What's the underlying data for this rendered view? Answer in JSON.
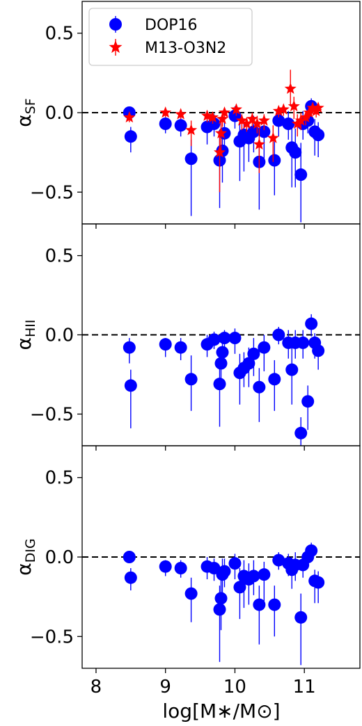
{
  "colors": {
    "dop16": "#0000ff",
    "m13": "#ff0000",
    "axis": "#000000"
  },
  "legend": [
    {
      "label": "DOP16",
      "marker": "circle"
    },
    {
      "label": "M13-O3N2",
      "marker": "star"
    }
  ],
  "xlabel": "log[M∗/M⊙]",
  "xlim": [
    7.8,
    11.8
  ],
  "xticks": [
    8,
    9,
    10,
    11
  ],
  "chart_data": [
    {
      "type": "scatter",
      "ylabel_main": "α",
      "ylabel_sub": "SF",
      "ylim": [
        -0.7,
        0.7
      ],
      "yticks": [
        0.5,
        0.0,
        -0.5
      ],
      "ytick_labels": [
        "0.5",
        "0.0",
        "−0.5"
      ],
      "reference_line_y": 0,
      "series": [
        {
          "name": "DOP16",
          "marker": "circle",
          "points": [
            [
              8.48,
              0.0,
              0.03,
              0.03
            ],
            [
              8.5,
              -0.15,
              0.1,
              0.06
            ],
            [
              9.0,
              -0.07,
              0.06,
              0.04
            ],
            [
              9.22,
              -0.08,
              0.07,
              0.05
            ],
            [
              9.37,
              -0.29,
              0.36,
              0.12
            ],
            [
              9.6,
              -0.09,
              0.11,
              0.07
            ],
            [
              9.7,
              -0.07,
              0.08,
              0.06
            ],
            [
              9.78,
              -0.3,
              0.3,
              0.15
            ],
            [
              9.82,
              -0.24,
              0.2,
              0.1
            ],
            [
              9.85,
              -0.13,
              0.12,
              0.08
            ],
            [
              10.0,
              -0.02,
              0.08,
              0.06
            ],
            [
              10.07,
              -0.18,
              0.25,
              0.12
            ],
            [
              10.13,
              -0.14,
              0.23,
              0.1
            ],
            [
              10.2,
              -0.16,
              0.15,
              0.1
            ],
            [
              10.27,
              -0.12,
              0.13,
              0.1
            ],
            [
              10.35,
              -0.31,
              0.3,
              0.12
            ],
            [
              10.42,
              -0.12,
              0.2,
              0.1
            ],
            [
              10.57,
              -0.3,
              0.22,
              0.12
            ],
            [
              10.63,
              -0.05,
              0.1,
              0.06
            ],
            [
              10.77,
              -0.07,
              0.1,
              0.08
            ],
            [
              10.82,
              -0.22,
              0.25,
              0.15
            ],
            [
              10.87,
              -0.25,
              0.22,
              0.15
            ],
            [
              10.95,
              -0.39,
              0.3,
              0.2
            ],
            [
              10.98,
              -0.07,
              0.1,
              0.08
            ],
            [
              11.05,
              -0.05,
              0.08,
              0.06
            ],
            [
              11.1,
              0.04,
              0.07,
              0.05
            ],
            [
              11.15,
              -0.12,
              0.15,
              0.08
            ],
            [
              11.2,
              -0.14,
              0.14,
              0.08
            ]
          ]
        },
        {
          "name": "M13-O3N2",
          "marker": "star",
          "points": [
            [
              8.48,
              -0.03,
              0.03,
              0.02
            ],
            [
              9.0,
              0.0,
              0.03,
              0.02
            ],
            [
              9.22,
              -0.01,
              0.03,
              0.02
            ],
            [
              9.37,
              -0.11,
              0.1,
              0.06
            ],
            [
              9.6,
              -0.02,
              0.04,
              0.03
            ],
            [
              9.68,
              -0.03,
              0.04,
              0.03
            ],
            [
              9.78,
              -0.25,
              0.25,
              0.1
            ],
            [
              9.8,
              -0.13,
              0.12,
              0.08
            ],
            [
              9.82,
              -0.04,
              0.05,
              0.03
            ],
            [
              9.85,
              0.0,
              0.04,
              0.03
            ],
            [
              10.02,
              0.02,
              0.04,
              0.03
            ],
            [
              10.1,
              -0.05,
              0.06,
              0.04
            ],
            [
              10.17,
              -0.07,
              0.05,
              0.04
            ],
            [
              10.25,
              -0.04,
              0.05,
              0.04
            ],
            [
              10.32,
              -0.07,
              0.06,
              0.05
            ],
            [
              10.35,
              -0.2,
              0.18,
              0.1
            ],
            [
              10.42,
              -0.05,
              0.06,
              0.04
            ],
            [
              10.55,
              -0.16,
              0.15,
              0.08
            ],
            [
              10.63,
              0.01,
              0.04,
              0.03
            ],
            [
              10.7,
              0.02,
              0.04,
              0.03
            ],
            [
              10.8,
              0.15,
              0.1,
              0.12
            ],
            [
              10.85,
              0.04,
              0.08,
              0.06
            ],
            [
              10.9,
              -0.07,
              0.08,
              0.06
            ],
            [
              10.95,
              -0.05,
              0.06,
              0.05
            ],
            [
              11.02,
              -0.03,
              0.05,
              0.04
            ],
            [
              11.07,
              0.0,
              0.04,
              0.03
            ],
            [
              11.12,
              0.03,
              0.04,
              0.03
            ],
            [
              11.17,
              0.01,
              0.04,
              0.03
            ],
            [
              11.2,
              0.03,
              0.04,
              0.03
            ]
          ]
        }
      ]
    },
    {
      "type": "scatter",
      "ylabel_main": "α",
      "ylabel_sub": "HII",
      "ylim": [
        -0.7,
        0.7
      ],
      "yticks": [
        0.5,
        0.0,
        -0.5
      ],
      "ytick_labels": [
        "0.5",
        "0.0",
        "−0.5"
      ],
      "reference_line_y": 0,
      "series": [
        {
          "name": "DOP16",
          "marker": "circle",
          "points": [
            [
              8.48,
              -0.08,
              0.1,
              0.06
            ],
            [
              8.5,
              -0.32,
              0.27,
              0.1
            ],
            [
              9.0,
              -0.06,
              0.08,
              0.04
            ],
            [
              9.22,
              -0.08,
              0.08,
              0.06
            ],
            [
              9.37,
              -0.28,
              0.2,
              0.15
            ],
            [
              9.6,
              -0.06,
              0.08,
              0.06
            ],
            [
              9.7,
              -0.03,
              0.06,
              0.05
            ],
            [
              9.78,
              -0.31,
              0.27,
              0.12
            ],
            [
              9.8,
              -0.18,
              0.12,
              0.1
            ],
            [
              9.82,
              -0.11,
              0.1,
              0.08
            ],
            [
              9.85,
              -0.02,
              0.06,
              0.05
            ],
            [
              10.0,
              -0.02,
              0.1,
              0.06
            ],
            [
              10.07,
              -0.24,
              0.2,
              0.12
            ],
            [
              10.13,
              -0.21,
              0.12,
              0.1
            ],
            [
              10.2,
              -0.18,
              0.15,
              0.1
            ],
            [
              10.27,
              -0.12,
              0.14,
              0.1
            ],
            [
              10.35,
              -0.33,
              0.22,
              0.12
            ],
            [
              10.42,
              -0.08,
              0.15,
              0.08
            ],
            [
              10.57,
              -0.28,
              0.2,
              0.12
            ],
            [
              10.63,
              0.0,
              0.06,
              0.05
            ],
            [
              10.77,
              -0.05,
              0.1,
              0.08
            ],
            [
              10.82,
              -0.22,
              0.22,
              0.15
            ],
            [
              10.87,
              -0.05,
              0.1,
              0.08
            ],
            [
              10.95,
              -0.62,
              0.08,
              0.1
            ],
            [
              10.98,
              -0.05,
              0.1,
              0.08
            ],
            [
              11.05,
              -0.42,
              0.18,
              0.1
            ],
            [
              11.1,
              0.07,
              0.08,
              0.06
            ],
            [
              11.15,
              -0.05,
              0.1,
              0.06
            ],
            [
              11.2,
              -0.1,
              0.12,
              0.07
            ]
          ]
        }
      ]
    },
    {
      "type": "scatter",
      "ylabel_main": "α",
      "ylabel_sub": "DIG",
      "ylim": [
        -0.7,
        0.7
      ],
      "yticks": [
        0.5,
        0.0,
        -0.5
      ],
      "ytick_labels": [
        "0.5",
        "0.0",
        "−0.5"
      ],
      "reference_line_y": 0,
      "series": [
        {
          "name": "DOP16",
          "marker": "circle",
          "points": [
            [
              8.48,
              0.0,
              0.03,
              0.03
            ],
            [
              8.5,
              -0.13,
              0.08,
              0.06
            ],
            [
              9.0,
              -0.06,
              0.06,
              0.04
            ],
            [
              9.22,
              -0.07,
              0.06,
              0.05
            ],
            [
              9.37,
              -0.23,
              0.18,
              0.1
            ],
            [
              9.6,
              -0.06,
              0.08,
              0.06
            ],
            [
              9.7,
              -0.07,
              0.08,
              0.06
            ],
            [
              9.78,
              -0.33,
              0.33,
              0.15
            ],
            [
              9.8,
              -0.26,
              0.2,
              0.12
            ],
            [
              9.82,
              -0.11,
              0.12,
              0.1
            ],
            [
              9.85,
              -0.09,
              0.1,
              0.08
            ],
            [
              10.0,
              -0.04,
              0.1,
              0.06
            ],
            [
              10.07,
              -0.19,
              0.2,
              0.12
            ],
            [
              10.13,
              -0.12,
              0.2,
              0.1
            ],
            [
              10.2,
              -0.14,
              0.16,
              0.1
            ],
            [
              10.27,
              -0.12,
              0.12,
              0.1
            ],
            [
              10.35,
              -0.3,
              0.25,
              0.12
            ],
            [
              10.42,
              -0.11,
              0.18,
              0.08
            ],
            [
              10.57,
              -0.3,
              0.2,
              0.12
            ],
            [
              10.63,
              -0.02,
              0.06,
              0.05
            ],
            [
              10.77,
              -0.04,
              0.08,
              0.06
            ],
            [
              10.82,
              -0.08,
              0.12,
              0.08
            ],
            [
              10.87,
              -0.05,
              0.1,
              0.08
            ],
            [
              10.95,
              -0.38,
              0.3,
              0.15
            ],
            [
              10.98,
              -0.05,
              0.08,
              0.06
            ],
            [
              11.05,
              0.0,
              0.06,
              0.05
            ],
            [
              11.1,
              0.04,
              0.06,
              0.05
            ],
            [
              11.15,
              -0.15,
              0.14,
              0.07
            ],
            [
              11.2,
              -0.16,
              0.13,
              0.07
            ]
          ]
        }
      ]
    }
  ]
}
